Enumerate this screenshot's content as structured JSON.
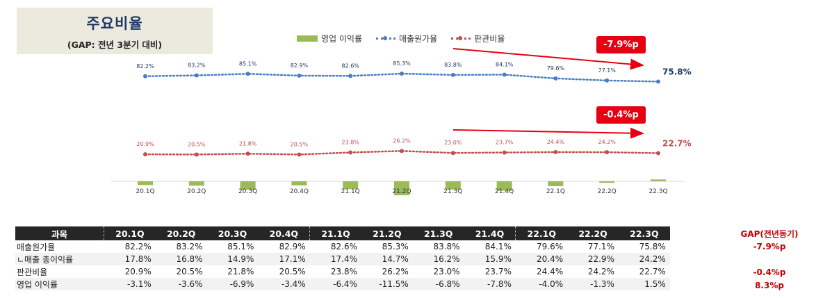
{
  "title": {
    "main": "주요비율",
    "sub": "(GAP: 전년 3분기 대비)"
  },
  "legend": {
    "op": "영업 이익률",
    "cogs": "매출원가율",
    "sga": "판관비율"
  },
  "badges": {
    "cogs": "-7.9%p",
    "sga": "-0.4%p"
  },
  "chart_data": {
    "type": "line",
    "categories": [
      "20.1Q",
      "20.2Q",
      "20.3Q",
      "20.4Q",
      "21.1Q",
      "21.2Q",
      "21.3Q",
      "21.4Q",
      "22.1Q",
      "22.2Q",
      "22.3Q"
    ],
    "series": [
      {
        "name": "영업 이익률",
        "type": "bar",
        "color": "#9bbb59",
        "values": [
          -3.1,
          -3.6,
          -6.9,
          -3.4,
          -6.4,
          -11.5,
          -6.8,
          -7.8,
          -4.0,
          -1.3,
          1.5
        ]
      },
      {
        "name": "매출원가율",
        "type": "line",
        "color": "#4a7ec4",
        "values": [
          82.2,
          83.2,
          85.1,
          82.9,
          82.6,
          85.3,
          83.8,
          84.1,
          79.6,
          77.1,
          75.8
        ],
        "labels": [
          "82.2%",
          "83.2%",
          "85.1%",
          "82.9%",
          "82.6%",
          "85.3%",
          "83.8%",
          "84.1%",
          "79.6%",
          "77.1%",
          "75.8%"
        ]
      },
      {
        "name": "판관비율",
        "type": "line",
        "color": "#c0504d",
        "values": [
          20.9,
          20.5,
          21.8,
          20.5,
          23.8,
          26.2,
          23.0,
          23.7,
          24.4,
          24.2,
          22.7
        ],
        "labels": [
          "20.9%",
          "20.5%",
          "21.8%",
          "20.5%",
          "23.8%",
          "26.2%",
          "23.0%",
          "23.7%",
          "24.4%",
          "24.2%",
          "22.7%"
        ]
      }
    ]
  },
  "table": {
    "header_label": "과목",
    "quarters": [
      "20.1Q",
      "20.2Q",
      "20.3Q",
      "20.4Q",
      "21.1Q",
      "21.2Q",
      "21.3Q",
      "21.4Q",
      "22.1Q",
      "22.2Q",
      "22.3Q"
    ],
    "gap_header": "GAP(전년동기)",
    "rows": [
      {
        "label": "매출원가율",
        "cells": [
          "82.2%",
          "83.2%",
          "85.1%",
          "82.9%",
          "82.6%",
          "85.3%",
          "83.8%",
          "84.1%",
          "79.6%",
          "77.1%",
          "75.8%"
        ],
        "gap": "-7.9%p"
      },
      {
        "label": "ㄴ매출 총이익률",
        "cells": [
          "17.8%",
          "16.8%",
          "14.9%",
          "17.1%",
          "17.4%",
          "14.7%",
          "16.2%",
          "15.9%",
          "20.4%",
          "22.9%",
          "24.2%"
        ],
        "gap": ""
      },
      {
        "label": "판관비율",
        "cells": [
          "20.9%",
          "20.5%",
          "21.8%",
          "20.5%",
          "23.8%",
          "26.2%",
          "23.0%",
          "23.7%",
          "24.4%",
          "24.2%",
          "22.7%"
        ],
        "gap": "-0.4%p"
      },
      {
        "label": "영업 이익률",
        "cells": [
          "-3.1%",
          "-3.6%",
          "-6.9%",
          "-3.4%",
          "-6.4%",
          "-11.5%",
          "-6.8%",
          "-7.8%",
          "-4.0%",
          "-1.3%",
          "1.5%"
        ],
        "gap": "8.3%p"
      }
    ]
  }
}
